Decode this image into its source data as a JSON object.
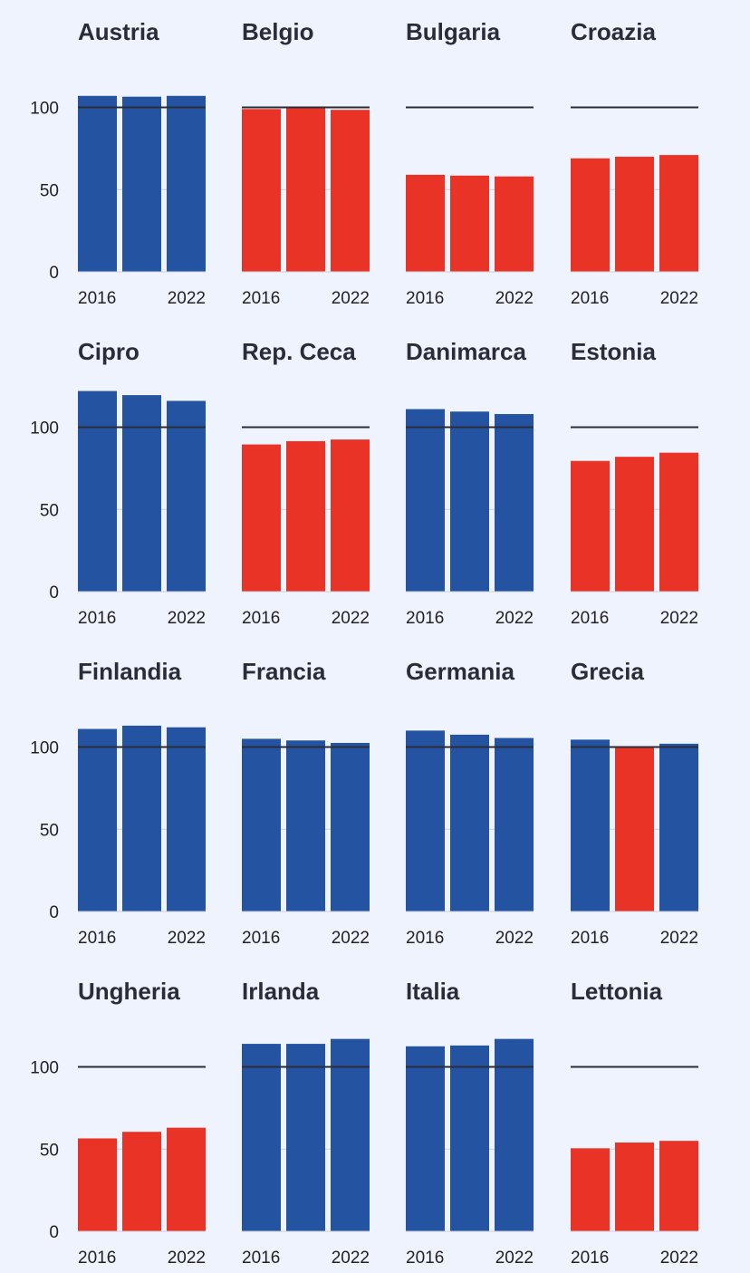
{
  "colors": {
    "background": "#EEF3FD",
    "above_reference": "#2353A1",
    "below_reference": "#EA3327",
    "reference_line": "#2B2D36",
    "title_text": "#2B2D36",
    "tick_text": "#222222"
  },
  "chart_data": {
    "type": "bar",
    "layout": "small-multiples-4-columns",
    "title": "",
    "xlabel": "",
    "ylabel": "",
    "ylim": [
      0,
      125
    ],
    "y_ticks": [
      "0",
      "50",
      "100"
    ],
    "reference_value": 100,
    "x_tick_labels": [
      "2016",
      "2022"
    ],
    "grid": "horizontal",
    "panels": [
      {
        "country": "Austria",
        "values": [
          107,
          106.5,
          107
        ]
      },
      {
        "country": "Belgio",
        "values": [
          99,
          99.5,
          98.5
        ]
      },
      {
        "country": "Bulgaria",
        "values": [
          59,
          58.5,
          58
        ]
      },
      {
        "country": "Croazia",
        "values": [
          69,
          70,
          71
        ]
      },
      {
        "country": "Cipro",
        "values": [
          122,
          119.5,
          116
        ]
      },
      {
        "country": "Rep. Ceca",
        "values": [
          89.5,
          91.5,
          92.5
        ]
      },
      {
        "country": "Danimarca",
        "values": [
          111,
          109.5,
          108
        ]
      },
      {
        "country": "Estonia",
        "values": [
          79.5,
          82,
          84.5
        ]
      },
      {
        "country": "Finlandia",
        "values": [
          111,
          113,
          112
        ]
      },
      {
        "country": "Francia",
        "values": [
          105,
          104,
          102.5
        ]
      },
      {
        "country": "Germania",
        "values": [
          110,
          107.5,
          105.5
        ]
      },
      {
        "country": "Grecia",
        "values": [
          104.5,
          99.5,
          102
        ]
      },
      {
        "country": "Ungheria",
        "values": [
          56.5,
          60.5,
          63
        ]
      },
      {
        "country": "Irlanda",
        "values": [
          114,
          114,
          117
        ]
      },
      {
        "country": "Italia",
        "values": [
          112.5,
          113,
          117
        ]
      },
      {
        "country": "Lettonia",
        "values": [
          50.5,
          54,
          55
        ]
      }
    ]
  }
}
